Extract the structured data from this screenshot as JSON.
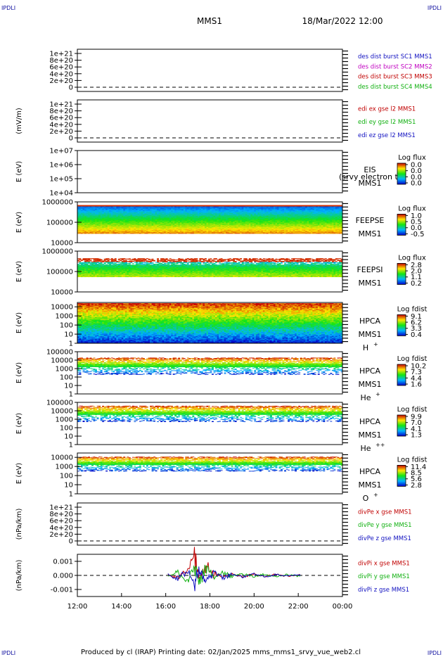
{
  "corner_label": "IPDLI",
  "header": {
    "spacecraft": "MMS1",
    "datetime": "18/Mar/2022 12:00"
  },
  "footer": {
    "text": "Produced by cl (IRAP)   Printing date: 02/Jan/2025   mms_mms1_srvy_vue_web2.cl"
  },
  "time_axis": {
    "ticks": [
      "12:00",
      "14:00",
      "16:00",
      "18:00",
      "20:00",
      "22:00",
      "00:00"
    ],
    "start_hour": 12,
    "end_hour": 24
  },
  "colors": {
    "frame": "#000000"
  },
  "chart_data": [
    {
      "type": "line",
      "panel": "des_dist",
      "ylabel": "",
      "yticks": [
        "1e+21",
        "8e+20",
        "6e+20",
        "4e+20",
        "2e+20",
        "0"
      ],
      "ylim": [
        0,
        1e+21
      ],
      "legend": [
        {
          "name": "des dist burst SC1 MMS1",
          "color": "#1010c0"
        },
        {
          "name": "des dist burst SC2 MMS2",
          "color": "#c000c0"
        },
        {
          "name": "des dist burst SC3 MMS3",
          "color": "#c00000"
        },
        {
          "name": "des dist burst SC4 MMS4",
          "color": "#10b010"
        }
      ],
      "series": [],
      "zero_line": true
    },
    {
      "type": "line",
      "panel": "edi_e",
      "ylabel": "(mV/m)",
      "yticks": [
        "1e+21",
        "8e+20",
        "6e+20",
        "4e+20",
        "2e+20",
        "0"
      ],
      "ylim": [
        0,
        1e+21
      ],
      "legend": [
        {
          "name": "edi ex gse l2 MMS1",
          "color": "#c00000"
        },
        {
          "name": "edi ey gse l2 MMS1",
          "color": "#10b010"
        },
        {
          "name": "edi ez gse l2 MMS1",
          "color": "#1010c0"
        }
      ],
      "series": [],
      "zero_line": true
    },
    {
      "type": "heatmap",
      "panel": "eis",
      "ylabel": "E (eV)",
      "yticks": [
        "1e+07",
        "1e+06",
        "1e+05",
        "1e+04"
      ],
      "ylim": [
        10000,
        10000000
      ],
      "log": true,
      "labels": [
        "EIS",
        "MMS1"
      ],
      "overlay": "(srvy electron to",
      "colorbar": {
        "title": "Log flux",
        "ticks": [
          "0.0",
          "0.0",
          "0.0",
          "0.0"
        ]
      },
      "fill": "empty"
    },
    {
      "type": "heatmap",
      "panel": "feeps_e",
      "ylabel": "E (eV)",
      "yticks": [
        "1000000",
        "100000",
        "10000"
      ],
      "ylim": [
        10000,
        1000000
      ],
      "log": true,
      "labels": [
        "FEEPSE",
        "MMS1"
      ],
      "colorbar": {
        "title": "Log flux",
        "ticks": [
          "1.0",
          "0.5",
          "0.0",
          "-0.5"
        ]
      },
      "band": [
        28000,
        700000
      ],
      "sparse_top": false
    },
    {
      "type": "heatmap",
      "panel": "feeps_i",
      "ylabel": "E (eV)",
      "yticks": [
        "1000000",
        "100000",
        "10000"
      ],
      "ylim": [
        10000,
        1000000
      ],
      "log": true,
      "labels": [
        "FEEPSI",
        "MMS1"
      ],
      "colorbar": {
        "title": "Log flux",
        "ticks": [
          "2.8",
          "2.0",
          "1.1",
          "0.2"
        ]
      },
      "band": [
        55000,
        450000
      ],
      "sparse_top": true
    },
    {
      "type": "heatmap",
      "panel": "hpca_h",
      "ylabel": "E (eV)",
      "yticks": [
        "10000",
        "1000",
        "100",
        "10",
        "1"
      ],
      "ylim": [
        1,
        30000
      ],
      "log": true,
      "labels": [
        "HPCA",
        "MMS1",
        "H",
        "+"
      ],
      "colorbar": {
        "title": "Log fdist",
        "ticks": [
          "9.1",
          "6.2",
          "3.3",
          "0.4"
        ]
      },
      "band": [
        1,
        25000
      ],
      "sparse_top": false
    },
    {
      "type": "heatmap",
      "panel": "hpca_he1",
      "ylabel": "E (eV)",
      "yticks": [
        "100000",
        "10000",
        "1000",
        "100",
        "10",
        "1"
      ],
      "ylim": [
        1,
        100000
      ],
      "log": true,
      "labels": [
        "HPCA",
        "MMS1",
        "He",
        "+"
      ],
      "colorbar": {
        "title": "Log fdist",
        "ticks": [
          "10.2",
          "7.3",
          "4.4",
          "1.6"
        ]
      },
      "band": [
        200,
        20000
      ],
      "sparse_top": true
    },
    {
      "type": "heatmap",
      "panel": "hpca_he2",
      "ylabel": "E (eV)",
      "yticks": [
        "100000",
        "10000",
        "1000",
        "100",
        "10",
        "1"
      ],
      "ylim": [
        1,
        100000
      ],
      "log": true,
      "labels": [
        "HPCA",
        "MMS1",
        "He",
        "++"
      ],
      "colorbar": {
        "title": "Log fdist",
        "ticks": [
          "9.9",
          "7.0",
          "4.1",
          "1.3"
        ]
      },
      "band": [
        500,
        40000
      ],
      "sparse_top": true
    },
    {
      "type": "heatmap",
      "panel": "hpca_o",
      "ylabel": "E (eV)",
      "yticks": [
        "10000",
        "1000",
        "100",
        "10",
        "1"
      ],
      "ylim": [
        1,
        30000
      ],
      "log": true,
      "labels": [
        "HPCA",
        "MMS1",
        "O",
        "+"
      ],
      "colorbar": {
        "title": "Log fdist",
        "ticks": [
          "11.4",
          "8.5",
          "5.6",
          "2.8"
        ]
      },
      "band": [
        300,
        12000
      ],
      "sparse_top": true
    },
    {
      "type": "line",
      "panel": "divpe",
      "ylabel": "(nPa/km)",
      "yticks": [
        "1e+21",
        "8e+20",
        "6e+20",
        "4e+20",
        "2e+20",
        "0"
      ],
      "ylim": [
        0,
        1e+21
      ],
      "legend": [
        {
          "name": "divPe x gse MMS1",
          "color": "#c00000"
        },
        {
          "name": "divPe y gse MMS1",
          "color": "#10b010"
        },
        {
          "name": "divPe z gse MMS1",
          "color": "#1010c0"
        }
      ],
      "series": [],
      "zero_line": true
    },
    {
      "type": "line",
      "panel": "divpi",
      "ylabel": "(nPa/km)",
      "yticks": [
        "0.001",
        "0.000",
        "-0.001"
      ],
      "ylim": [
        -0.0015,
        0.0015
      ],
      "legend": [
        {
          "name": "divPi x gse MMS1",
          "color": "#c00000"
        },
        {
          "name": "divPi y gse MMS1",
          "color": "#10b010"
        },
        {
          "name": "divPi z gse MMS1",
          "color": "#1010c0"
        }
      ],
      "series": [
        {
          "name": "divPi x gse MMS1",
          "color": "#c00000",
          "x": [
            16.1,
            16.5,
            17.0,
            17.3,
            17.5,
            17.8,
            18.2,
            18.6,
            19.0,
            19.5,
            20.0,
            20.5,
            21.0,
            21.5,
            22.0,
            22.1
          ],
          "y": [
            0.0001,
            -0.0002,
            0.0004,
            0.0013,
            -0.0003,
            0.0007,
            0.0002,
            -0.0001,
            0.0001,
            -0.0001,
            0.0001,
            -8e-05,
            8e-05,
            -6e-05,
            5e-05,
            0.0
          ]
        },
        {
          "name": "divPi y gse MMS1",
          "color": "#10b010",
          "x": [
            16.1,
            16.5,
            17.0,
            17.3,
            17.5,
            17.8,
            18.2,
            18.6,
            19.0,
            19.5,
            20.0,
            20.5,
            21.0,
            21.5,
            22.0,
            22.1
          ],
          "y": [
            -0.0001,
            0.0003,
            -0.0004,
            0.0008,
            -0.0006,
            0.0005,
            -0.0002,
            0.0002,
            -0.0001,
            0.00015,
            -0.0001,
            0.0001,
            -8e-05,
            7e-05,
            -5e-05,
            0.0
          ]
        },
        {
          "name": "divPi z gse MMS1",
          "color": "#1010c0",
          "x": [
            16.1,
            16.5,
            17.0,
            17.3,
            17.5,
            17.8,
            18.2,
            18.6,
            19.0,
            19.5,
            20.0,
            20.5,
            21.0,
            21.5,
            22.0,
            22.1
          ],
          "y": [
            0.0001,
            -0.0003,
            0.0003,
            -0.0007,
            0.0004,
            -0.0004,
            0.0002,
            -0.0002,
            0.0001,
            -0.0001,
            0.0001,
            -8e-05,
            6e-05,
            -5e-05,
            4e-05,
            0.0
          ]
        }
      ],
      "zero_line": true
    }
  ]
}
